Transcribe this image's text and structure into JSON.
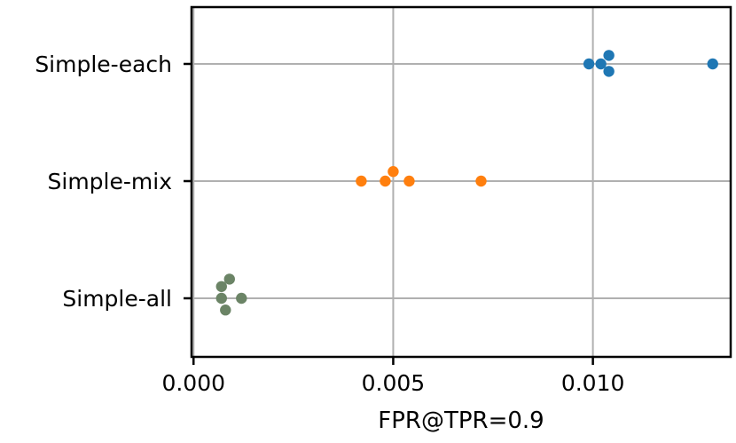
{
  "chart_data": {
    "type": "scatter",
    "subtype": "swarm",
    "title": "",
    "xlabel": "FPR@TPR=0.9",
    "ylabel": "",
    "xlim": [
      -5e-05,
      0.01345
    ],
    "x_ticks": [
      0.0,
      0.005,
      0.01
    ],
    "x_tick_labels": [
      "0.000",
      "0.005",
      "0.010"
    ],
    "categories": [
      "Simple-each",
      "Simple-mix",
      "Simple-all"
    ],
    "grid": true,
    "legend": "none",
    "series": [
      {
        "category": "Simple-each",
        "color": "#1f77b4",
        "points": [
          {
            "x": 0.0099,
            "offset": 0.0
          },
          {
            "x": 0.0102,
            "offset": 0.0
          },
          {
            "x": 0.0104,
            "offset": 0.08
          },
          {
            "x": 0.0104,
            "offset": -0.07
          },
          {
            "x": 0.013,
            "offset": 0.0
          }
        ]
      },
      {
        "category": "Simple-mix",
        "color": "#ff7f0e",
        "points": [
          {
            "x": 0.0042,
            "offset": 0.0
          },
          {
            "x": 0.0048,
            "offset": 0.0
          },
          {
            "x": 0.005,
            "offset": 0.09
          },
          {
            "x": 0.0054,
            "offset": 0.0
          },
          {
            "x": 0.0072,
            "offset": 0.0
          }
        ]
      },
      {
        "category": "Simple-all",
        "color": "#6b8466",
        "points": [
          {
            "x": 0.0009,
            "offset": 0.18
          },
          {
            "x": 0.0007,
            "offset": 0.11
          },
          {
            "x": 0.0012,
            "offset": 0.0
          },
          {
            "x": 0.0007,
            "offset": 0.0
          },
          {
            "x": 0.0008,
            "offset": -0.11
          }
        ]
      }
    ]
  }
}
